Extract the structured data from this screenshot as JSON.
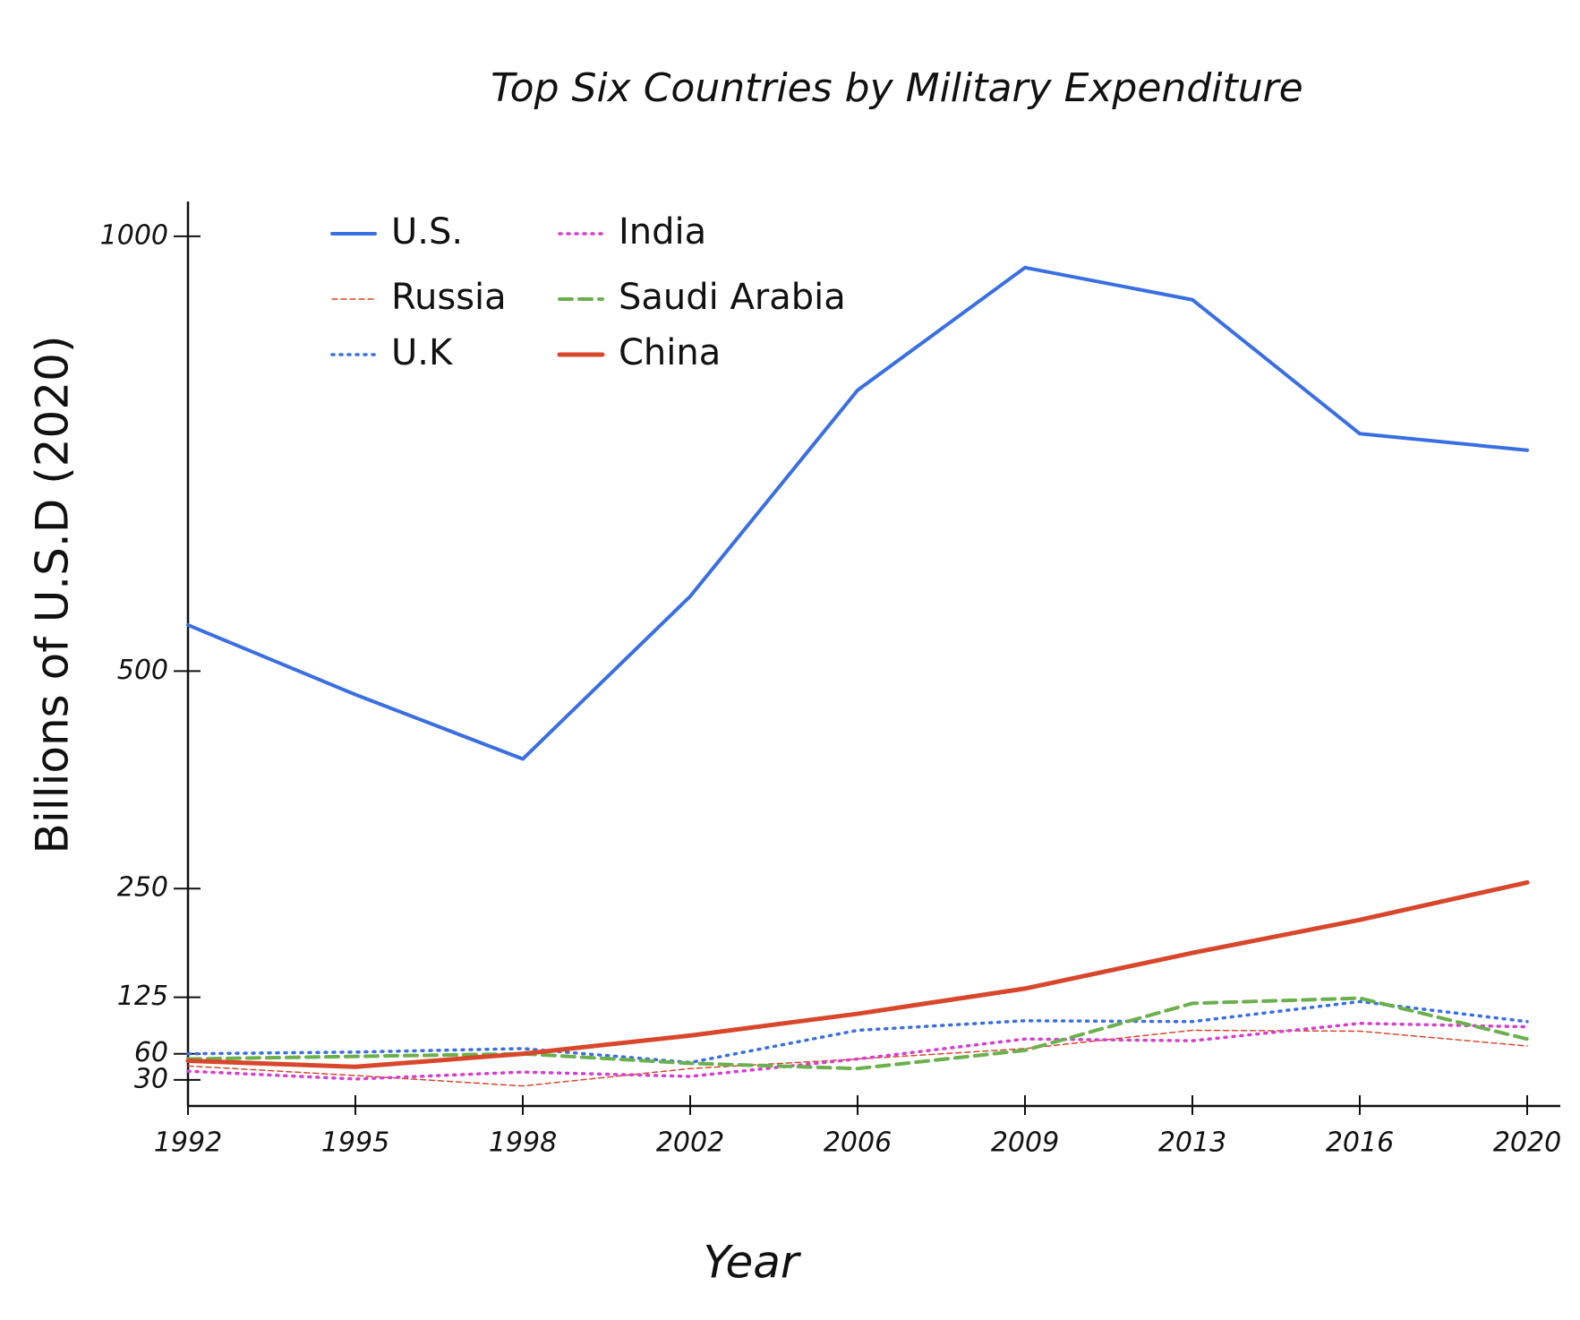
{
  "chart_data": {
    "type": "line",
    "title": "Top Six Countries by Military Expenditure",
    "x_label": "Year",
    "y_label": "Billions of U.S.D (2020)",
    "categories": [
      "1992",
      "1995",
      "1998",
      "2002",
      "2006",
      "2009",
      "2013",
      "2016",
      "2020"
    ],
    "ylim": [
      0,
      1040
    ],
    "yticks": [
      30,
      60,
      125,
      250,
      500,
      1000
    ],
    "grid": false,
    "series": [
      {
        "name": "U.S.",
        "color": "#3a6fe2",
        "style": "solid",
        "line_width": 4,
        "values": [
          553,
          473,
          399,
          586,
          823,
          964,
          927,
          773,
          754
        ]
      },
      {
        "name": "Russia",
        "color": "#d8472b",
        "style": "dashed-thin",
        "line_width": 1.5,
        "values": [
          46,
          35,
          23,
          43,
          54,
          66,
          87,
          86,
          69
        ]
      },
      {
        "name": "U.K",
        "color": "#3a6fe2",
        "style": "dotted",
        "line_width": 3.5,
        "values": [
          60,
          62,
          66,
          50,
          87,
          98,
          97,
          120,
          97
        ]
      },
      {
        "name": "India",
        "color": "#d63fd0",
        "style": "dotted",
        "line_width": 3.5,
        "values": [
          40,
          31,
          39,
          34,
          54,
          77,
          75,
          95,
          91
        ]
      },
      {
        "name": "Saudi Arabia",
        "color": "#6ab04c",
        "style": "dashed",
        "line_width": 4,
        "values": [
          54,
          57,
          60,
          49,
          43,
          64,
          118,
          124,
          77
        ]
      },
      {
        "name": "China",
        "color": "#d8472b",
        "style": "solid",
        "line_width": 5,
        "values": [
          52,
          45,
          60,
          81,
          106,
          135,
          176,
          214,
          257
        ]
      }
    ]
  }
}
